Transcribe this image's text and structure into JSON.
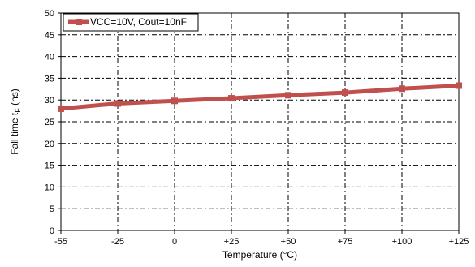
{
  "chart_data": {
    "type": "line",
    "x": [
      "-55",
      "-25",
      "0",
      "+25",
      "+50",
      "+75",
      "+100",
      "+125"
    ],
    "series": [
      {
        "name": "VCC=10V, Cout=10nF",
        "values": [
          28.0,
          29.2,
          29.8,
          30.4,
          31.1,
          31.7,
          32.6,
          33.3
        ]
      }
    ],
    "xlabel": "Temperature (°C)",
    "ylabel_main": "Fall time t",
    "ylabel_sub": "F",
    "ylabel_unit": " (ns)",
    "ylim": [
      0,
      50
    ],
    "yticks": [
      "0",
      "5",
      "10",
      "15",
      "20",
      "25",
      "30",
      "35",
      "40",
      "45",
      "50"
    ],
    "grid": true,
    "legend_position": "top-left",
    "series_color": "#c0504d"
  }
}
